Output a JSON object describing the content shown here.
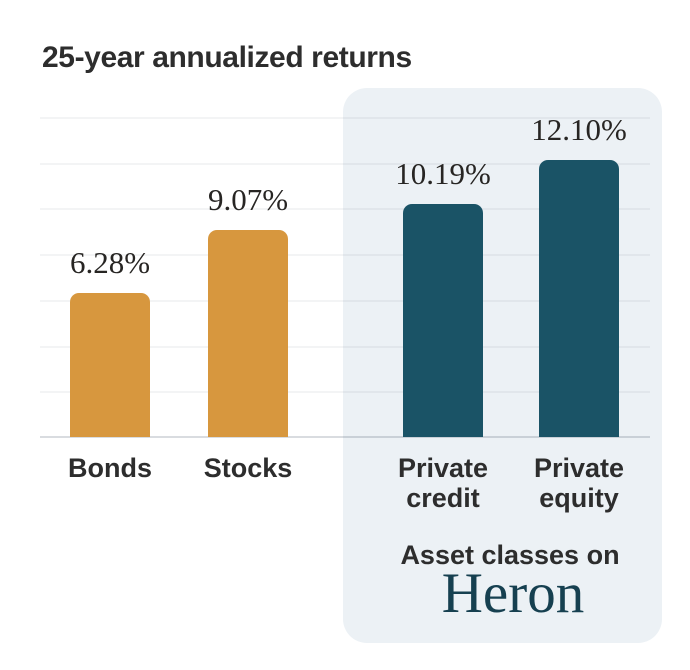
{
  "chart_data": {
    "type": "bar",
    "title": "25-year annualized returns",
    "categories": [
      "Bonds",
      "Stocks",
      "Private credit",
      "Private equity"
    ],
    "values": [
      6.28,
      9.07,
      10.19,
      12.1
    ],
    "value_labels": [
      "6.28%",
      "9.07%",
      "10.19%",
      "12.10%"
    ],
    "xlabel": "",
    "ylabel": "",
    "ylim": [
      0,
      14
    ],
    "gridline_step": 2,
    "grid": true,
    "legend_position": "none",
    "bar_colors": [
      "#D7973E",
      "#D7973E",
      "#1A5366",
      "#1A5366"
    ],
    "highlight_panel": {
      "caption": "Asset classes on",
      "brand": "Heron",
      "covers_categories": [
        "Private credit",
        "Private equity"
      ],
      "bg_color": "#ECF1F5",
      "brand_color": "#164050"
    }
  },
  "colors": {
    "public_asset_bar": "#D7973E",
    "private_asset_bar": "#1A5366",
    "panel_background": "#ECF1F5",
    "brand_text": "#164050",
    "heading_text": "#2D2D2D"
  }
}
